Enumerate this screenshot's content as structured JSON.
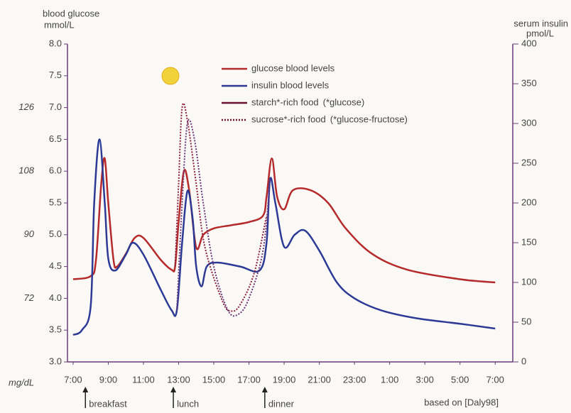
{
  "chart_data": {
    "type": "line",
    "ylabel": [
      "blood glucose",
      "mmol/L"
    ],
    "y2label": [
      "serum insulin",
      "pmol/L"
    ],
    "mgdl_label": "mg/dL",
    "xlim": [
      -0.32,
      25.0
    ],
    "xticks": [
      {
        "value": 0,
        "label": "7:00"
      },
      {
        "value": 2,
        "label": "9:00"
      },
      {
        "value": 4,
        "label": "11:00"
      },
      {
        "value": 6,
        "label": "13:00"
      },
      {
        "value": 8,
        "label": "15:00"
      },
      {
        "value": 10,
        "label": "17:00"
      },
      {
        "value": 12,
        "label": "19:00"
      },
      {
        "value": 14,
        "label": "21:00"
      },
      {
        "value": 16,
        "label": "23:00"
      },
      {
        "value": 18,
        "label": "1:00"
      },
      {
        "value": 20,
        "label": "3:00"
      },
      {
        "value": 22,
        "label": "5:00"
      },
      {
        "value": 24,
        "label": "7:00"
      }
    ],
    "ylim": [
      3.0,
      8.0
    ],
    "yticks": [
      {
        "value": 3,
        "label": "3.0"
      },
      3.5,
      {
        "value": 4,
        "label": "4.0"
      },
      4.5,
      {
        "value": 5,
        "label": "5.0"
      },
      5.5,
      {
        "value": 6,
        "label": "6.0"
      },
      6.5,
      {
        "value": 7,
        "label": "7.0"
      },
      7.5,
      {
        "value": 8,
        "label": "8.0"
      }
    ],
    "mgdl_ticks": [
      {
        "value": 7,
        "label": "126"
      },
      {
        "value": 6,
        "label": "108"
      },
      {
        "value": 5,
        "label": "90"
      },
      {
        "value": 4,
        "label": "72"
      }
    ],
    "y2lim": [
      0,
      400
    ],
    "y2ticks": [
      0,
      50,
      100,
      150,
      200,
      250,
      300,
      350,
      400
    ],
    "series": [
      {
        "name": "glucose blood levels",
        "color": "#b52a2a",
        "style": "solid",
        "axis": "y",
        "x": [
          0,
          1.0,
          1.3,
          1.6,
          1.8,
          2.0,
          2.3,
          2.5,
          3.0,
          3.5,
          4.0,
          5.0,
          5.6,
          5.8,
          6.0,
          6.3,
          6.6,
          7.0,
          7.4,
          8.0,
          9.0,
          10.0,
          10.8,
          11.0,
          11.3,
          11.6,
          12.0,
          12.5,
          13.5,
          14.5,
          15.5,
          17,
          19,
          22,
          24
        ],
        "values": [
          4.3,
          4.35,
          4.6,
          5.8,
          6.2,
          5.5,
          4.6,
          4.5,
          4.7,
          4.95,
          4.95,
          4.6,
          4.45,
          4.5,
          5.2,
          6.0,
          5.7,
          4.8,
          5.0,
          5.1,
          5.15,
          5.2,
          5.3,
          5.6,
          6.2,
          5.6,
          5.4,
          5.7,
          5.7,
          5.5,
          5.1,
          4.7,
          4.45,
          4.3,
          4.25
        ]
      },
      {
        "name": "insulin blood levels",
        "color": "#2c3a96",
        "style": "solid",
        "axis": "y2",
        "x": [
          0,
          0.5,
          1.0,
          1.2,
          1.5,
          1.8,
          2.0,
          2.4,
          3.0,
          3.4,
          4.0,
          5.0,
          5.6,
          5.9,
          6.2,
          6.5,
          6.8,
          7.0,
          7.3,
          7.6,
          8.2,
          9.5,
          10.6,
          11.0,
          11.2,
          11.5,
          12.0,
          12.6,
          13.2,
          14.0,
          15.0,
          16.0,
          17.5,
          19.5,
          22,
          24
        ],
        "values": [
          34,
          40,
          70,
          200,
          280,
          200,
          130,
          115,
          135,
          150,
          135,
          90,
          65,
          65,
          150,
          215,
          180,
          120,
          95,
          120,
          125,
          120,
          115,
          150,
          230,
          200,
          145,
          160,
          165,
          140,
          100,
          80,
          65,
          55,
          48,
          42
        ]
      },
      {
        "color": "#8b2040",
        "style": "dotted",
        "axis": "y",
        "x": [
          5.8,
          6.0,
          6.2,
          6.5,
          7.0,
          7.5,
          8.5,
          9.0,
          9.5,
          10.3,
          11.0
        ],
        "values": [
          4.5,
          5.8,
          7.0,
          6.8,
          5.8,
          4.8,
          3.95,
          3.8,
          3.9,
          4.4,
          5.3
        ]
      },
      {
        "color": "#6a3a7a",
        "style": "dotted",
        "axis": "y2",
        "x": [
          5.9,
          6.2,
          6.5,
          6.9,
          7.4,
          8.0,
          8.8,
          9.4,
          10.0,
          10.8,
          11.2
        ],
        "values": [
          65,
          200,
          300,
          280,
          200,
          120,
          65,
          60,
          80,
          140,
          230
        ]
      }
    ],
    "legend_extra": [
      {
        "label": "starch*-rich food",
        "note": "(*glucose)",
        "color": "#6a1030",
        "style": "solid"
      },
      {
        "label": "sucrose*-rich food",
        "note": "(*glucose-fructose)",
        "color": "#6a1030",
        "style": "dotted"
      }
    ],
    "annotations": [
      {
        "x": 0.7,
        "text": "breakfast"
      },
      {
        "x": 5.7,
        "text": "lunch"
      },
      {
        "x": 10.9,
        "text": "dinner"
      }
    ],
    "source": "based on [Daly98]"
  }
}
